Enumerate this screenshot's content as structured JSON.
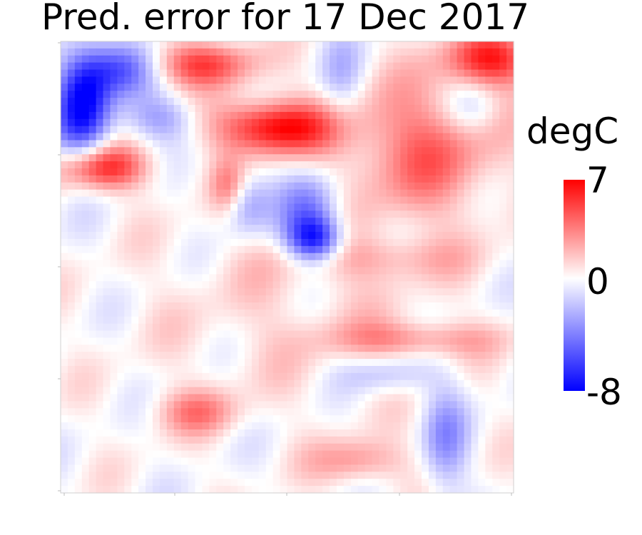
{
  "chart_data": {
    "type": "heatmap",
    "title": "Pred. error for 17 Dec 2017",
    "xlabel": "",
    "ylabel": "",
    "grid": false,
    "colorbar": {
      "label": "degC",
      "vmin": -8,
      "vmax": 7,
      "ticks": [
        "7",
        "0",
        "-8"
      ],
      "colors": {
        "low": "#0000ff",
        "mid": "#ffffff",
        "high": "#ff0000"
      },
      "placement": "right"
    },
    "grid_size": [
      64,
      64
    ],
    "field": {
      "description_of_values": "temperature prediction error in degC, reconstructed as a smooth field",
      "features": [
        {
          "kind": "blob",
          "cx": 0.05,
          "cy": 0.14,
          "rx": 0.06,
          "ry": 0.12,
          "amp": -8
        },
        {
          "kind": "blob",
          "cx": 0.13,
          "cy": 0.06,
          "rx": 0.08,
          "ry": 0.06,
          "amp": -5
        },
        {
          "kind": "blob",
          "cx": 0.22,
          "cy": 0.17,
          "rx": 0.08,
          "ry": 0.05,
          "amp": -3
        },
        {
          "kind": "blob",
          "cx": 0.47,
          "cy": 0.19,
          "rx": 0.13,
          "ry": 0.06,
          "amp": 7
        },
        {
          "kind": "blob",
          "cx": 0.31,
          "cy": 0.05,
          "rx": 0.12,
          "ry": 0.05,
          "amp": 5
        },
        {
          "kind": "blob",
          "cx": 0.09,
          "cy": 0.28,
          "rx": 0.1,
          "ry": 0.05,
          "amp": 6
        },
        {
          "kind": "blob",
          "cx": 0.95,
          "cy": 0.04,
          "rx": 0.1,
          "ry": 0.06,
          "amp": 6
        },
        {
          "kind": "blob",
          "cx": 0.8,
          "cy": 0.24,
          "rx": 0.18,
          "ry": 0.15,
          "amp": 4
        },
        {
          "kind": "blob",
          "cx": 0.91,
          "cy": 0.15,
          "rx": 0.06,
          "ry": 0.06,
          "amp": -2
        },
        {
          "kind": "blob",
          "cx": 0.56,
          "cy": 0.44,
          "rx": 0.06,
          "ry": 0.05,
          "amp": -7
        },
        {
          "kind": "blob",
          "cx": 0.55,
          "cy": 0.37,
          "rx": 0.07,
          "ry": 0.08,
          "amp": -4
        },
        {
          "kind": "blob",
          "cx": 0.41,
          "cy": 0.36,
          "rx": 0.05,
          "ry": 0.07,
          "amp": -3
        },
        {
          "kind": "blob",
          "cx": 0.37,
          "cy": 0.32,
          "rx": 0.04,
          "ry": 0.06,
          "amp": 3
        },
        {
          "kind": "blob",
          "cx": 0.7,
          "cy": 0.48,
          "rx": 0.2,
          "ry": 0.05,
          "amp": 2
        },
        {
          "kind": "blob",
          "cx": 0.78,
          "cy": 0.66,
          "rx": 0.18,
          "ry": 0.04,
          "amp": 3
        },
        {
          "kind": "blob",
          "cx": 0.3,
          "cy": 0.82,
          "rx": 0.09,
          "ry": 0.05,
          "amp": 3
        },
        {
          "kind": "blob",
          "cx": 0.66,
          "cy": 0.93,
          "rx": 0.1,
          "ry": 0.05,
          "amp": 3
        },
        {
          "kind": "blob",
          "cx": 0.85,
          "cy": 0.88,
          "rx": 0.05,
          "ry": 0.12,
          "amp": -3
        },
        {
          "kind": "blob",
          "cx": 0.72,
          "cy": 0.74,
          "rx": 0.1,
          "ry": 0.04,
          "amp": -2
        },
        {
          "kind": "blob",
          "cx": 0.5,
          "cy": 0.6,
          "rx": 0.3,
          "ry": 0.2,
          "amp": 1
        },
        {
          "kind": "blob",
          "cx": 0.62,
          "cy": 0.08,
          "rx": 0.05,
          "ry": 0.1,
          "amp": -2
        }
      ]
    }
  }
}
